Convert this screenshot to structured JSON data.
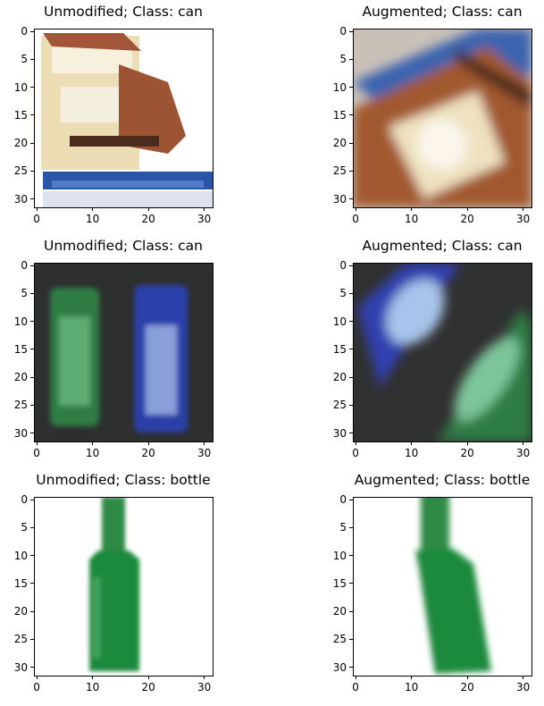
{
  "figure": {
    "panels": [
      {
        "title": "Unmodified; Class: can",
        "image": "can-box-photo-original",
        "kind": "unmodified",
        "class_name": "can"
      },
      {
        "title": "Augmented; Class: can",
        "image": "can-box-photo-augmented",
        "kind": "augmented",
        "class_name": "can"
      },
      {
        "title": "Unmodified; Class: can",
        "image": "two-cans-photo-original",
        "kind": "unmodified",
        "class_name": "can"
      },
      {
        "title": "Augmented; Class: can",
        "image": "two-cans-photo-augmented",
        "kind": "augmented",
        "class_name": "can"
      },
      {
        "title": "Unmodified; Class: bottle",
        "image": "green-bottle-photo-original",
        "kind": "unmodified",
        "class_name": "bottle"
      },
      {
        "title": "Augmented; Class: bottle",
        "image": "green-bottle-photo-augmented",
        "kind": "augmented",
        "class_name": "bottle"
      }
    ],
    "axes": {
      "x_ticks": [
        "0",
        "10",
        "20",
        "30"
      ],
      "y_ticks": [
        "0",
        "5",
        "10",
        "15",
        "20",
        "25",
        "30"
      ],
      "xlim": [
        -0.5,
        31.5
      ],
      "ylim": [
        31.5,
        -0.5
      ]
    },
    "colors": {
      "can_cream": "#e9dcae",
      "can_brown": "#8a4b2a",
      "can_blue": "#2a55a8",
      "dark_bg": "#2e2f2f",
      "green": "#2f8a45",
      "bottle_green": "#1f8a3c"
    }
  }
}
